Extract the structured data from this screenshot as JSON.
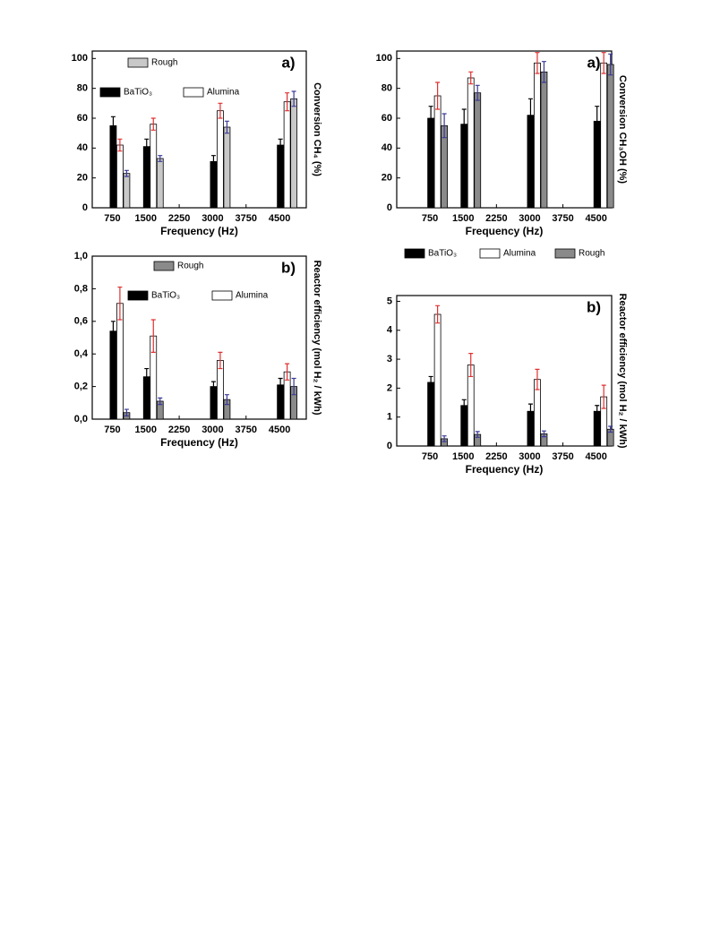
{
  "chart_data": [
    {
      "type": "bar",
      "title": "a)",
      "y_label": "Conversion CH₄ (%)",
      "x_label": "Frequency (Hz)",
      "x": [
        750,
        1500,
        3000,
        4500
      ],
      "xlim": [
        300,
        5100
      ],
      "xticks": [
        750,
        1500,
        2250,
        3000,
        3750,
        4500
      ],
      "ylim": [
        0,
        105
      ],
      "yticks": [
        0,
        20,
        40,
        60,
        80,
        100
      ],
      "legend": true,
      "series": [
        {
          "name": "BaTiO₃",
          "color": "#000000",
          "error_color": "#000000",
          "values": [
            55,
            41,
            31,
            42
          ],
          "errors": [
            6,
            5,
            4,
            4
          ]
        },
        {
          "name": "Alumina",
          "color": "#ffffff",
          "error_color": "#e03030",
          "values": [
            42,
            56,
            65,
            71
          ],
          "errors": [
            4,
            4,
            5,
            6
          ]
        },
        {
          "name": "Rough",
          "color": "#c8c8c8",
          "error_color": "#3a3a9a",
          "values": [
            23,
            33,
            54,
            73
          ],
          "errors": [
            2,
            2,
            4,
            5
          ]
        }
      ]
    },
    {
      "type": "bar",
      "title": "a)",
      "y_label": "Conversion CH₃OH (%)",
      "x_label": "Frequency (Hz)",
      "x": [
        750,
        1500,
        3000,
        4500
      ],
      "xlim": [
        0,
        4850
      ],
      "xticks": [
        750,
        1500,
        2250,
        3000,
        3750,
        4500
      ],
      "ylim": [
        0,
        105
      ],
      "yticks": [
        0,
        20,
        40,
        60,
        80,
        100
      ],
      "legend": false,
      "series": [
        {
          "color": "#000000",
          "error_color": "#000000",
          "values": [
            60,
            56,
            62,
            58
          ],
          "errors": [
            8,
            10,
            11,
            10
          ]
        },
        {
          "color": "#ffffff",
          "error_color": "#e03030",
          "values": [
            75,
            87,
            97,
            97
          ],
          "errors": [
            9,
            4,
            7,
            7
          ]
        },
        {
          "color": "#8a8a8a",
          "error_color": "#3a3a9a",
          "values": [
            55,
            77,
            91,
            96
          ],
          "errors": [
            8,
            5,
            7,
            7
          ]
        }
      ]
    },
    {
      "type": "bar",
      "title": "b)",
      "y_label": "Reactor efficiency (mol H₂ / kWh)",
      "x_label": "Frequency  (Hz)",
      "x": [
        750,
        1500,
        3000,
        4500
      ],
      "xlim": [
        300,
        5100
      ],
      "xticks": [
        750,
        1500,
        2250,
        3000,
        3750,
        4500
      ],
      "ylim": [
        0,
        1.0
      ],
      "yticks": [
        {
          "value": 0,
          "label": "0,0"
        },
        {
          "value": 0.2,
          "label": "0,2"
        },
        {
          "value": 0.4,
          "label": "0,4"
        },
        {
          "value": 0.6,
          "label": "0,6"
        },
        {
          "value": 0.8,
          "label": "0,8"
        },
        {
          "value": 1.0,
          "label": "1,0"
        }
      ],
      "legend": true,
      "series": [
        {
          "name": "BaTiO₃",
          "color": "#000000",
          "error_color": "#000000",
          "values": [
            0.54,
            0.26,
            0.2,
            0.21
          ],
          "errors": [
            0.06,
            0.05,
            0.03,
            0.04
          ]
        },
        {
          "name": "Alumina",
          "color": "#ffffff",
          "error_color": "#e03030",
          "values": [
            0.71,
            0.51,
            0.36,
            0.29
          ],
          "errors": [
            0.1,
            0.1,
            0.05,
            0.05
          ]
        },
        {
          "name": "Rough",
          "color": "#8a8a8a",
          "error_color": "#3a3a9a",
          "values": [
            0.04,
            0.11,
            0.12,
            0.2
          ],
          "errors": [
            0.02,
            0.02,
            0.03,
            0.05
          ]
        }
      ]
    },
    {
      "type": "bar",
      "title": "b)",
      "y_label": "Reactor efficiency (mol H₂ / kWh)",
      "x_label": "Frequency (Hz)",
      "x": [
        750,
        1500,
        3000,
        4500
      ],
      "xlim": [
        0,
        4850
      ],
      "xticks": [
        750,
        1500,
        2250,
        3000,
        3750,
        4500
      ],
      "ylim": [
        0,
        5.2
      ],
      "yticks": [
        0,
        1,
        2,
        3,
        4,
        5
      ],
      "legend": true,
      "series": [
        {
          "name": "BaTiO₃",
          "color": "#000000",
          "error_color": "#000000",
          "values": [
            2.2,
            1.4,
            1.2,
            1.2
          ],
          "errors": [
            0.2,
            0.2,
            0.25,
            0.2
          ]
        },
        {
          "name": "Alumina",
          "color": "#ffffff",
          "error_color": "#e03030",
          "values": [
            4.55,
            2.8,
            2.3,
            1.7
          ],
          "errors": [
            0.3,
            0.4,
            0.35,
            0.4
          ]
        },
        {
          "name": "Rough",
          "color": "#8a8a8a",
          "error_color": "#3a3a9a",
          "values": [
            0.25,
            0.4,
            0.42,
            0.58
          ],
          "errors": [
            0.1,
            0.1,
            0.1,
            0.1
          ]
        }
      ]
    }
  ]
}
